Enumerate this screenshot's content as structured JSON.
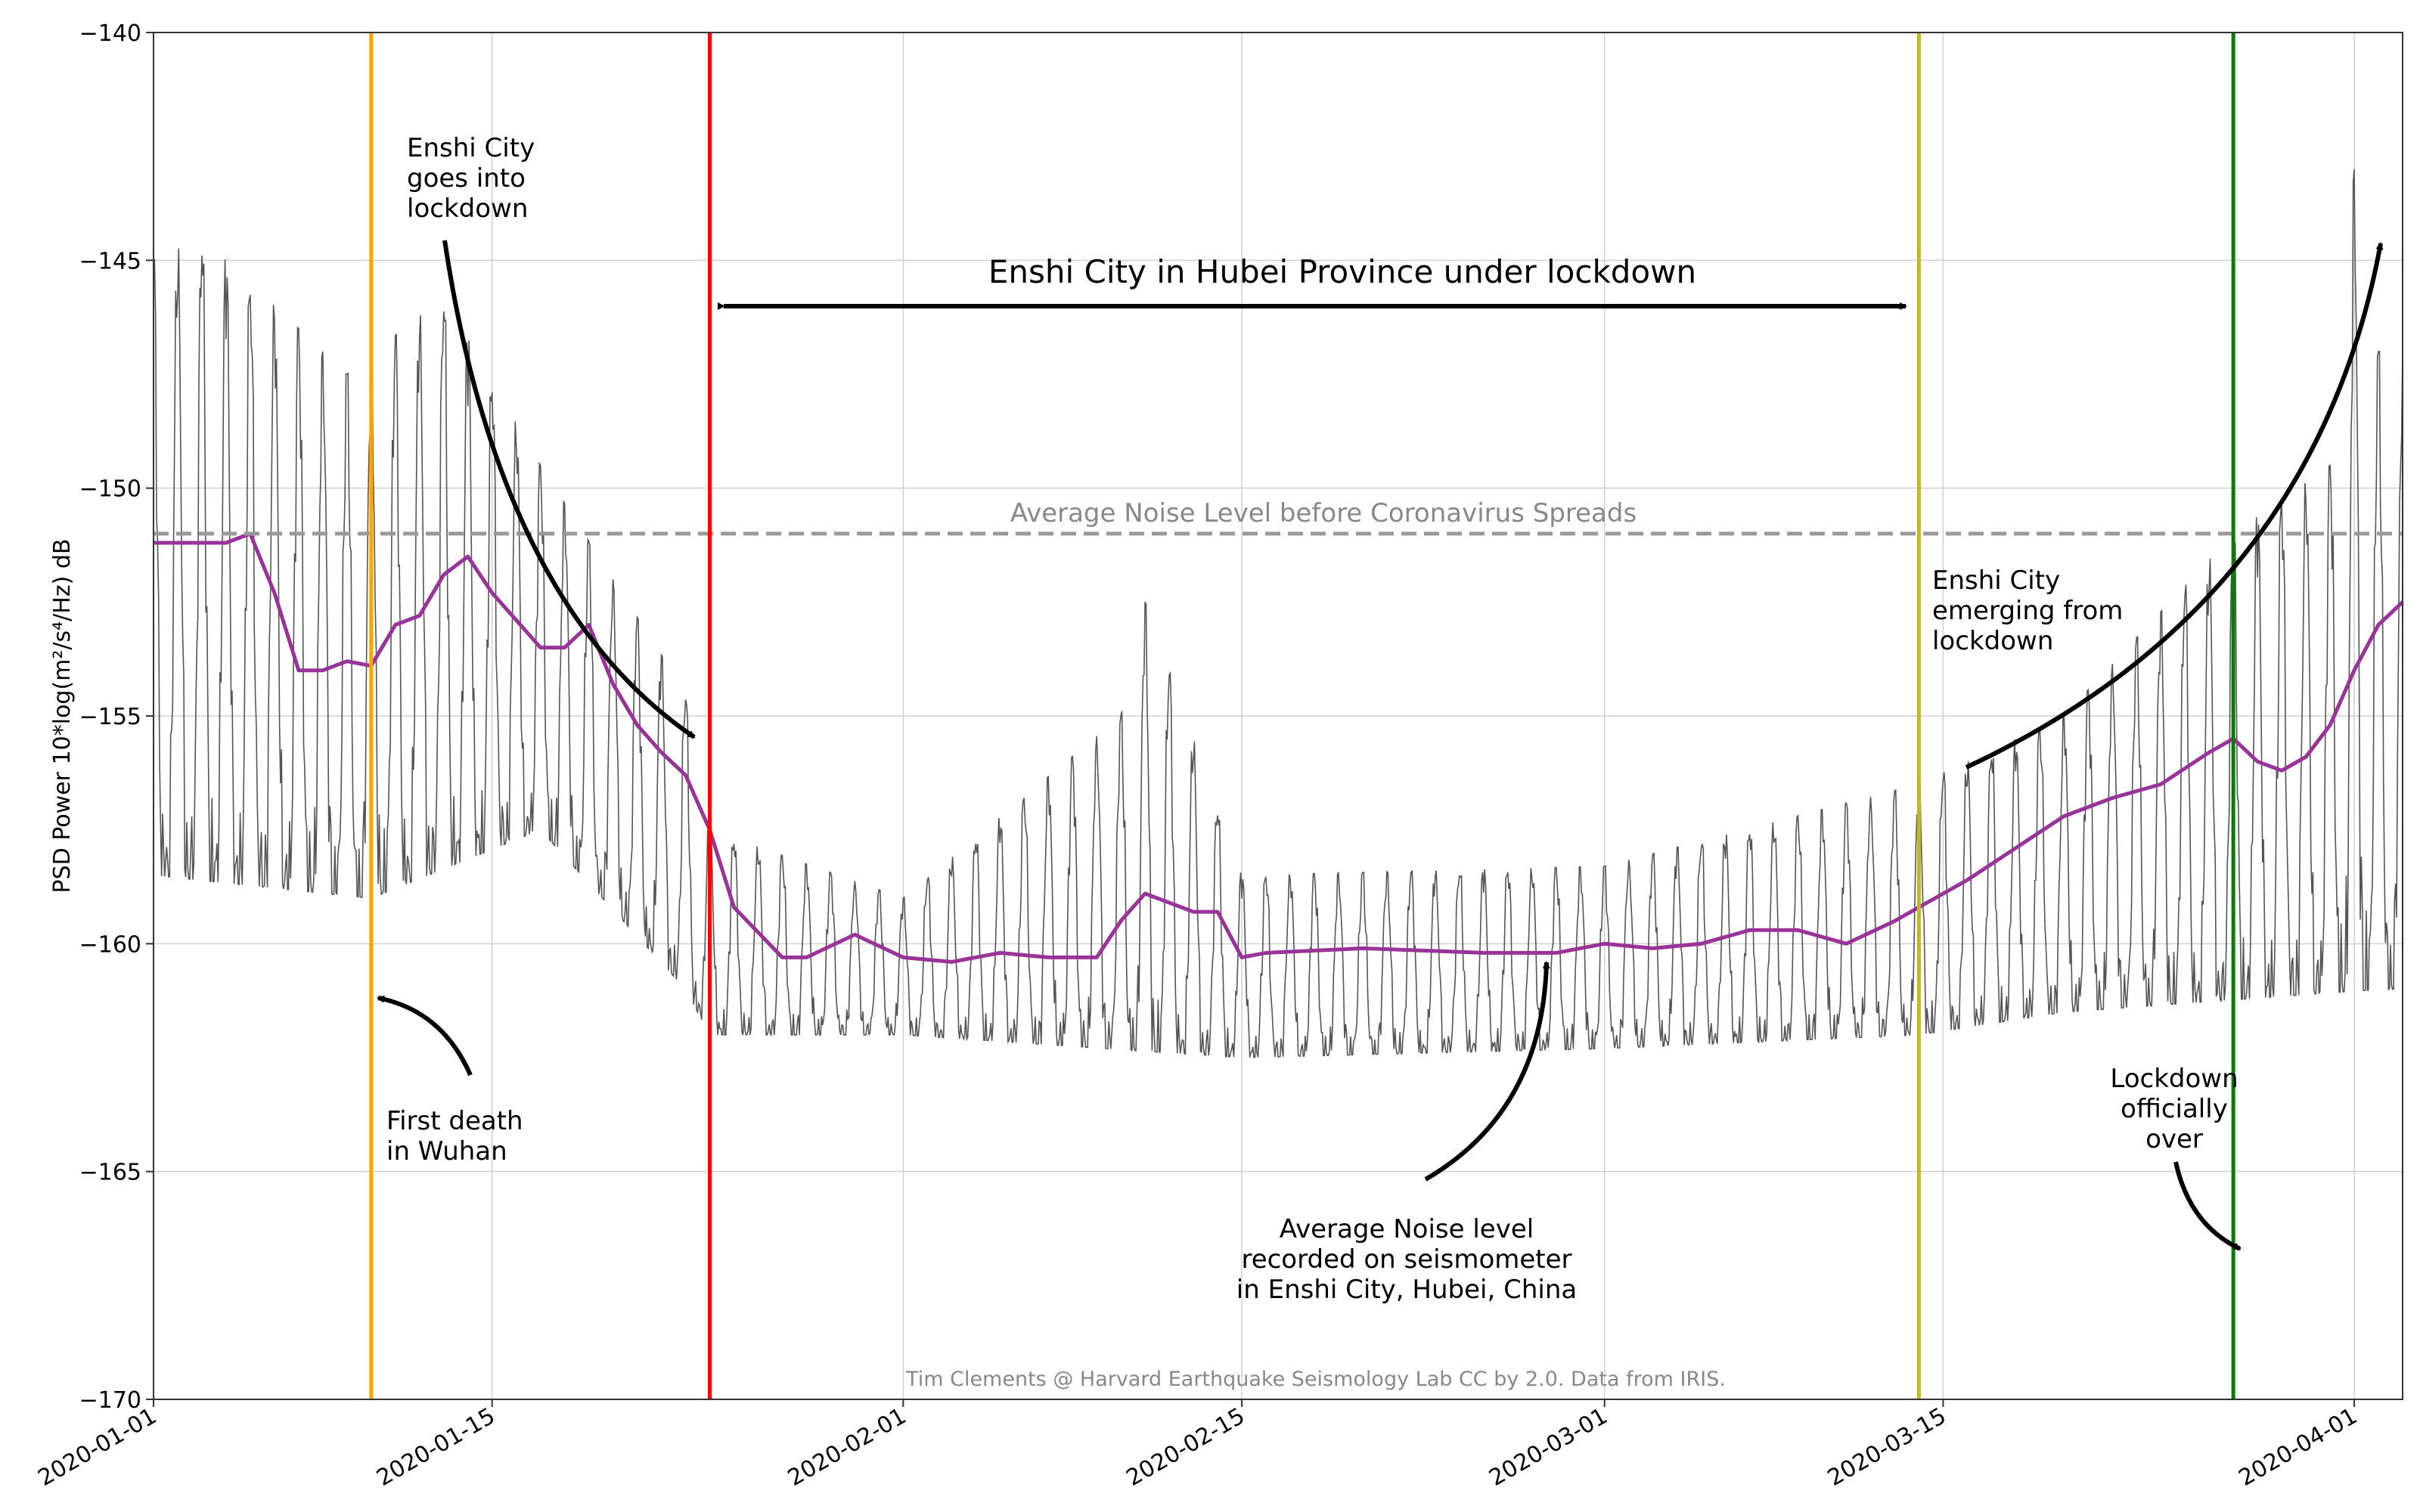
{
  "chart_data": {
    "type": "line",
    "ylabel": "PSD Power  10*log(m²/s⁴/Hz) dB",
    "xlabel": "",
    "ylim": [
      -170,
      -140
    ],
    "xlim": [
      "2020-01-01",
      "2020-04-03"
    ],
    "y_ticks": [
      -170,
      -165,
      -160,
      -155,
      -150,
      -145,
      -140
    ],
    "x_ticks": [
      "2020-01-01",
      "2020-01-15",
      "2020-02-01",
      "2020-02-15",
      "2020-03-01",
      "2020-03-15",
      "2020-04-01"
    ],
    "grid": true,
    "series": [
      {
        "name": "",
        "style": "thin gray raw noise (daily oscillation)",
        "color": "#555555",
        "troughs": [
          [
            "2020-01-01",
            -158.5
          ],
          [
            "2020-01-10",
            -159.0
          ],
          [
            "2020-01-17",
            -157.5
          ],
          [
            "2020-01-23",
            -161.0
          ],
          [
            "2020-01-24",
            -162.0
          ],
          [
            "2020-02-01",
            -162.0
          ],
          [
            "2020-02-15",
            -162.5
          ],
          [
            "2020-03-01",
            -162.3
          ],
          [
            "2020-03-14",
            -162.0
          ],
          [
            "2020-03-20",
            -161.5
          ],
          [
            "2020-04-02",
            -161.0
          ]
        ],
        "peaks": [
          [
            "2020-01-01",
            -145.0
          ],
          [
            "2020-01-03",
            -144.5
          ],
          [
            "2020-01-09",
            -147.5
          ],
          [
            "2020-01-13",
            -145.8
          ],
          [
            "2020-01-17",
            -149.5
          ],
          [
            "2020-01-23",
            -154.5
          ],
          [
            "2020-01-24",
            -157.5
          ],
          [
            "2020-02-01",
            -159.0
          ],
          [
            "2020-02-10",
            -155.0
          ],
          [
            "2020-02-11",
            -152.5
          ],
          [
            "2020-02-15",
            -158.5
          ],
          [
            "2020-03-01",
            -158.3
          ],
          [
            "2020-03-14",
            -156.5
          ],
          [
            "2020-03-20",
            -155.0
          ],
          [
            "2020-03-27",
            -151.0
          ],
          [
            "2020-03-31",
            -149.5
          ],
          [
            "2020-04-01",
            -143.0
          ],
          [
            "2020-04-02",
            -147.0
          ]
        ]
      },
      {
        "name": "",
        "style": "thick purple smoothed average",
        "color": "#993399",
        "x": [
          "2020-01-01",
          "2020-01-02",
          "2020-01-04",
          "2020-01-05",
          "2020-01-06",
          "2020-01-07",
          "2020-01-08",
          "2020-01-09",
          "2020-01-10",
          "2020-01-11",
          "2020-01-12",
          "2020-01-13",
          "2020-01-14",
          "2020-01-15",
          "2020-01-16",
          "2020-01-17",
          "2020-01-18",
          "2020-01-19",
          "2020-01-20",
          "2020-01-21",
          "2020-01-22",
          "2020-01-23",
          "2020-01-24",
          "2020-01-25",
          "2020-01-27",
          "2020-01-28",
          "2020-01-30",
          "2020-02-01",
          "2020-02-03",
          "2020-02-05",
          "2020-02-07",
          "2020-02-09",
          "2020-02-10",
          "2020-02-11",
          "2020-02-13",
          "2020-02-14",
          "2020-02-15",
          "2020-02-16",
          "2020-02-20",
          "2020-02-25",
          "2020-02-28",
          "2020-03-01",
          "2020-03-03",
          "2020-03-05",
          "2020-03-07",
          "2020-03-09",
          "2020-03-11",
          "2020-03-13",
          "2020-03-14",
          "2020-03-16",
          "2020-03-18",
          "2020-03-20",
          "2020-03-22",
          "2020-03-24",
          "2020-03-26",
          "2020-03-27",
          "2020-03-28",
          "2020-03-29",
          "2020-03-30",
          "2020-03-31",
          "2020-04-01",
          "2020-04-02",
          "2020-04-03"
        ],
        "values": [
          -151.2,
          -151.2,
          -151.2,
          -151.0,
          -152.3,
          -154.0,
          -154.0,
          -153.8,
          -153.9,
          -153.0,
          -152.8,
          -151.9,
          -151.5,
          -152.3,
          -152.9,
          -153.5,
          -153.5,
          -153.0,
          -154.3,
          -155.2,
          -155.8,
          -156.3,
          -157.5,
          -159.2,
          -160.3,
          -160.3,
          -159.8,
          -160.3,
          -160.4,
          -160.2,
          -160.3,
          -160.3,
          -159.5,
          -158.9,
          -159.3,
          -159.3,
          -160.3,
          -160.2,
          -160.1,
          -160.2,
          -160.2,
          -160.0,
          -160.1,
          -160.0,
          -159.7,
          -159.7,
          -160.0,
          -159.5,
          -159.2,
          -158.6,
          -157.9,
          -157.2,
          -156.8,
          -156.5,
          -155.8,
          -155.5,
          -156.0,
          -156.2,
          -155.9,
          -155.2,
          -154.0,
          -153.0,
          -152.5
        ]
      }
    ],
    "reference_lines": [
      {
        "orientation": "horizontal",
        "y": -151.0,
        "style": "dashed",
        "color": "#999999",
        "label": "Average Noise Level before Coronavirus Spreads"
      },
      {
        "orientation": "vertical",
        "x": "2020-01-10",
        "color": "#ffa500"
      },
      {
        "orientation": "vertical",
        "x": "2020-01-24",
        "color": "#ff0000"
      },
      {
        "orientation": "vertical",
        "x": "2020-03-14",
        "color": "#bfbf00"
      },
      {
        "orientation": "vertical",
        "x": "2020-03-27",
        "color": "#008000"
      }
    ],
    "annotations": {
      "goes_into_lockdown": [
        "Enshi City",
        "goes into",
        "lockdown"
      ],
      "under_lockdown": "Enshi City in Hubei Province under lockdown",
      "emerging": [
        "Enshi City",
        "emerging from",
        "lockdown"
      ],
      "first_death": [
        "First death",
        "in Wuhan"
      ],
      "average_level": [
        "Average Noise level",
        "recorded on seismometer",
        "in Enshi City, Hubei, China"
      ],
      "lockdown_over": [
        "Lockdown",
        "officially",
        "over"
      ],
      "credit": "Tim Clements @ Harvard Earthquake Seismology Lab CC by 2.0. Data from IRIS."
    }
  }
}
